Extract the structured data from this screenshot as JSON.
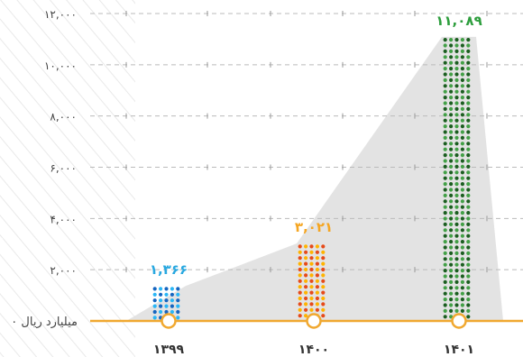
{
  "chart_data": {
    "type": "bar",
    "categories": [
      "۱۳۹۹",
      "۱۴۰۰",
      "۱۴۰۱"
    ],
    "values": [
      1366,
      3021,
      11089
    ],
    "value_labels": [
      "۱,۳۶۶",
      "۳,۰۲۱",
      "۱۱,۰۸۹"
    ],
    "bar_colors": [
      [
        "#1565c0",
        "#29b6f6"
      ],
      [
        "#e64a19",
        "#ffb300"
      ],
      [
        "#1b5e20",
        "#43a047"
      ]
    ],
    "label_colors": [
      "#29a8e0",
      "#f5a623",
      "#2e9e3e"
    ],
    "ylim": [
      0,
      12000
    ],
    "yticks": [
      0,
      2000,
      4000,
      6000,
      8000,
      10000,
      12000
    ],
    "ytick_labels": [
      "۰ میلیارد ریال",
      "۲,۰۰۰",
      "۴,۰۰۰",
      "۶,۰۰۰",
      "۸,۰۰۰",
      "۱۰,۰۰۰",
      "۱۲,۰۰۰"
    ],
    "grid": true,
    "baseline_color": "#f0a830",
    "xlabel": "",
    "ylabel": "",
    "title": ""
  }
}
